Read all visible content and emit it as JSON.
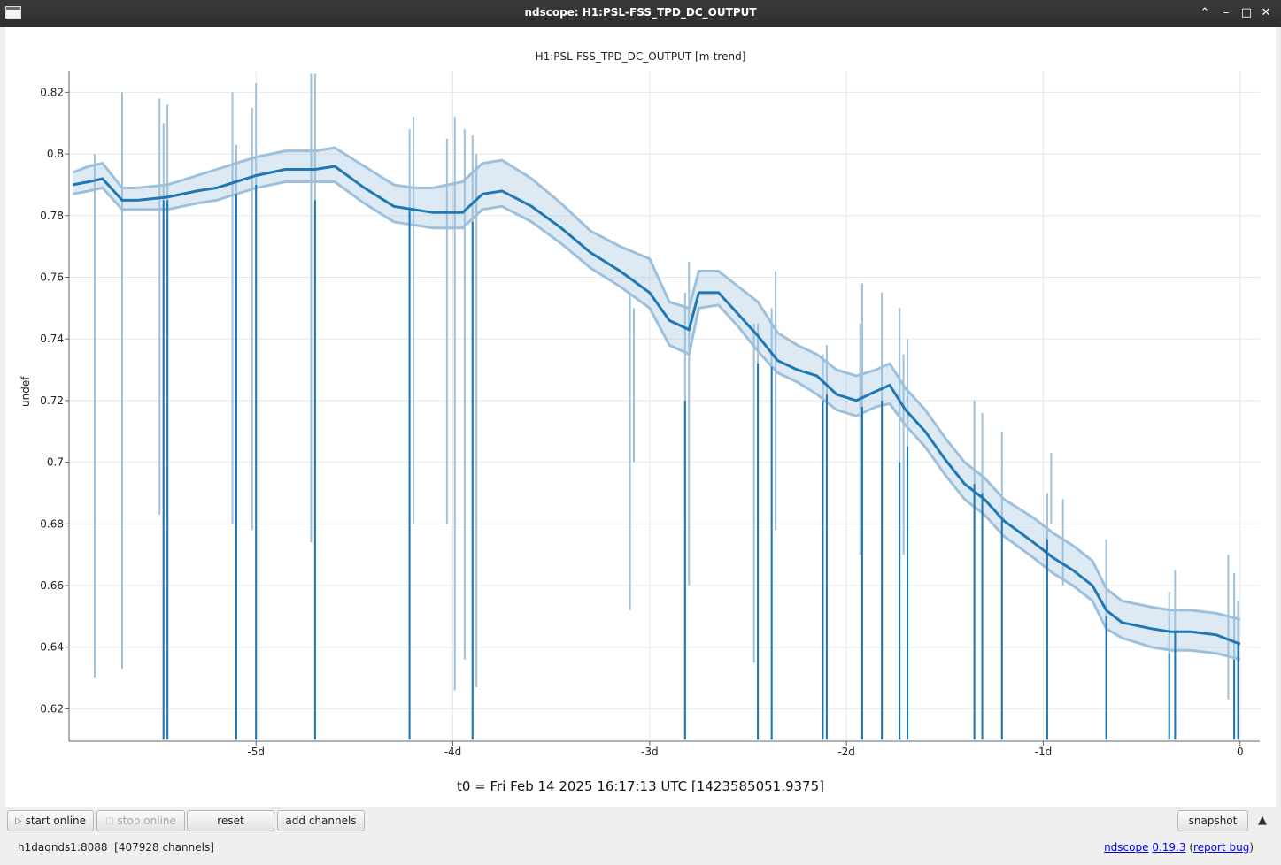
{
  "window": {
    "title": "ndscope: H1:PSL-FSS_TPD_DC_OUTPUT",
    "controls": {
      "minimize_up": "⌃",
      "minimize": "–",
      "maximize": "□",
      "close": "✕"
    }
  },
  "plot": {
    "title": "H1:PSL-FSS_TPD_DC_OUTPUT [m-trend]",
    "ylabel": "undef",
    "t0_text": "t0 = Fri Feb 14 2025 16:17:13 UTC [1423585051.9375]"
  },
  "chart_data": {
    "type": "line",
    "title": "H1:PSL-FSS_TPD_DC_OUTPUT [m-trend]",
    "xlabel": "",
    "ylabel": "undef",
    "xlim": [
      -5.95,
      0.1
    ],
    "ylim": [
      0.6095,
      0.827
    ],
    "grid": true,
    "x_tick_values": [
      -5,
      -4,
      -3,
      -2,
      -1,
      0
    ],
    "x_tick_labels": [
      "-5d",
      "-4d",
      "-3d",
      "-2d",
      "-1d",
      "0"
    ],
    "y_tick_values": [
      0.62,
      0.64,
      0.66,
      0.68,
      0.7,
      0.72,
      0.74,
      0.76,
      0.78,
      0.8,
      0.82
    ],
    "y_tick_labels": [
      "0.62",
      "0.64",
      "0.66",
      "0.68",
      "0.7",
      "0.72",
      "0.74",
      "0.76",
      "0.78",
      "0.8",
      "0.82"
    ],
    "colors": {
      "mean": "#1f77b4",
      "minmax": "#9dc0dc",
      "grid": "#e8e8e8"
    },
    "series": [
      {
        "role": "mean",
        "x": [
          -5.93,
          -5.85,
          -5.78,
          -5.68,
          -5.6,
          -5.45,
          -5.3,
          -5.2,
          -5.0,
          -4.85,
          -4.7,
          -4.6,
          -4.45,
          -4.3,
          -4.2,
          -4.1,
          -3.95,
          -3.85,
          -3.75,
          -3.6,
          -3.45,
          -3.3,
          -3.15,
          -3.0,
          -2.9,
          -2.8,
          -2.75,
          -2.65,
          -2.55,
          -2.45,
          -2.35,
          -2.25,
          -2.15,
          -2.05,
          -1.95,
          -1.85,
          -1.78,
          -1.7,
          -1.6,
          -1.5,
          -1.4,
          -1.3,
          -1.2,
          -1.05,
          -0.95,
          -0.85,
          -0.75,
          -0.68,
          -0.6,
          -0.45,
          -0.35,
          -0.25,
          -0.12,
          0.0
        ],
        "y": [
          0.79,
          0.791,
          0.792,
          0.785,
          0.785,
          0.786,
          0.788,
          0.789,
          0.793,
          0.795,
          0.795,
          0.796,
          0.789,
          0.783,
          0.782,
          0.781,
          0.781,
          0.787,
          0.788,
          0.783,
          0.776,
          0.768,
          0.762,
          0.755,
          0.746,
          0.743,
          0.755,
          0.755,
          0.748,
          0.741,
          0.733,
          0.73,
          0.728,
          0.722,
          0.72,
          0.723,
          0.725,
          0.717,
          0.71,
          0.701,
          0.693,
          0.688,
          0.681,
          0.674,
          0.669,
          0.665,
          0.66,
          0.652,
          0.648,
          0.646,
          0.645,
          0.645,
          0.644,
          0.641
        ]
      },
      {
        "role": "max",
        "x": [
          -5.93,
          -5.85,
          -5.78,
          -5.68,
          -5.6,
          -5.45,
          -5.3,
          -5.2,
          -5.0,
          -4.85,
          -4.7,
          -4.6,
          -4.45,
          -4.3,
          -4.2,
          -4.1,
          -3.95,
          -3.85,
          -3.75,
          -3.6,
          -3.45,
          -3.3,
          -3.15,
          -3.0,
          -2.9,
          -2.8,
          -2.75,
          -2.65,
          -2.55,
          -2.45,
          -2.35,
          -2.25,
          -2.15,
          -2.05,
          -1.95,
          -1.85,
          -1.78,
          -1.7,
          -1.6,
          -1.5,
          -1.4,
          -1.3,
          -1.2,
          -1.05,
          -0.95,
          -0.85,
          -0.75,
          -0.68,
          -0.6,
          -0.45,
          -0.35,
          -0.25,
          -0.12,
          0.0
        ],
        "y": [
          0.794,
          0.796,
          0.797,
          0.789,
          0.789,
          0.79,
          0.793,
          0.795,
          0.799,
          0.801,
          0.801,
          0.802,
          0.796,
          0.79,
          0.789,
          0.789,
          0.791,
          0.797,
          0.798,
          0.792,
          0.784,
          0.775,
          0.77,
          0.766,
          0.752,
          0.75,
          0.762,
          0.762,
          0.757,
          0.752,
          0.742,
          0.738,
          0.735,
          0.73,
          0.728,
          0.73,
          0.732,
          0.724,
          0.717,
          0.708,
          0.7,
          0.695,
          0.688,
          0.682,
          0.677,
          0.673,
          0.668,
          0.659,
          0.655,
          0.653,
          0.652,
          0.652,
          0.651,
          0.649
        ]
      },
      {
        "role": "min",
        "x": [
          -5.93,
          -5.85,
          -5.78,
          -5.68,
          -5.6,
          -5.45,
          -5.3,
          -5.2,
          -5.0,
          -4.85,
          -4.7,
          -4.6,
          -4.45,
          -4.3,
          -4.2,
          -4.1,
          -3.95,
          -3.85,
          -3.75,
          -3.6,
          -3.45,
          -3.3,
          -3.15,
          -3.0,
          -2.9,
          -2.8,
          -2.75,
          -2.65,
          -2.55,
          -2.45,
          -2.35,
          -2.25,
          -2.15,
          -2.05,
          -1.95,
          -1.85,
          -1.78,
          -1.7,
          -1.6,
          -1.5,
          -1.4,
          -1.3,
          -1.2,
          -1.05,
          -0.95,
          -0.85,
          -0.75,
          -0.68,
          -0.6,
          -0.45,
          -0.35,
          -0.25,
          -0.12,
          0.0
        ],
        "y": [
          0.787,
          0.788,
          0.789,
          0.782,
          0.782,
          0.782,
          0.784,
          0.785,
          0.789,
          0.791,
          0.791,
          0.791,
          0.784,
          0.778,
          0.777,
          0.776,
          0.776,
          0.782,
          0.783,
          0.778,
          0.771,
          0.763,
          0.757,
          0.75,
          0.738,
          0.735,
          0.75,
          0.751,
          0.744,
          0.736,
          0.729,
          0.726,
          0.722,
          0.717,
          0.715,
          0.718,
          0.719,
          0.712,
          0.705,
          0.696,
          0.688,
          0.683,
          0.676,
          0.669,
          0.664,
          0.66,
          0.655,
          0.646,
          0.643,
          0.64,
          0.639,
          0.639,
          0.638,
          0.636
        ]
      }
    ],
    "dropouts": [
      {
        "x": -5.82,
        "min": 0.63,
        "mean": 0.655,
        "max": 0.8
      },
      {
        "x": -5.68,
        "min": 0.633,
        "mean": 0.785,
        "max": 0.82
      },
      {
        "x": -5.49,
        "min": 0.683,
        "mean": 0.786,
        "max": 0.818
      },
      {
        "x": -5.47,
        "min": 0.61,
        "mean": 0.785,
        "max": 0.81
      },
      {
        "x": -5.45,
        "min": 0.61,
        "mean": 0.785,
        "max": 0.816
      },
      {
        "x": -5.12,
        "min": 0.68,
        "mean": 0.788,
        "max": 0.82
      },
      {
        "x": -5.1,
        "min": 0.61,
        "mean": 0.787,
        "max": 0.803
      },
      {
        "x": -5.02,
        "min": 0.678,
        "mean": 0.789,
        "max": 0.815
      },
      {
        "x": -5.0,
        "min": 0.61,
        "mean": 0.79,
        "max": 0.823
      },
      {
        "x": -4.72,
        "min": 0.674,
        "mean": 0.79,
        "max": 0.826
      },
      {
        "x": -4.7,
        "min": 0.61,
        "mean": 0.785,
        "max": 0.826
      },
      {
        "x": -4.22,
        "min": 0.61,
        "mean": 0.782,
        "max": 0.808
      },
      {
        "x": -4.2,
        "min": 0.68,
        "mean": 0.781,
        "max": 0.812
      },
      {
        "x": -4.03,
        "min": 0.68,
        "mean": 0.781,
        "max": 0.805
      },
      {
        "x": -3.99,
        "min": 0.626,
        "mean": 0.78,
        "max": 0.812
      },
      {
        "x": -3.94,
        "min": 0.636,
        "mean": 0.779,
        "max": 0.808
      },
      {
        "x": -3.9,
        "min": 0.61,
        "mean": 0.778,
        "max": 0.806
      },
      {
        "x": -3.88,
        "min": 0.627,
        "mean": 0.779,
        "max": 0.8
      },
      {
        "x": -3.1,
        "min": 0.652,
        "mean": 0.747,
        "max": 0.755
      },
      {
        "x": -3.08,
        "min": 0.7,
        "mean": 0.745,
        "max": 0.75
      },
      {
        "x": -2.82,
        "min": 0.61,
        "mean": 0.72,
        "max": 0.755
      },
      {
        "x": -2.8,
        "min": 0.66,
        "mean": 0.72,
        "max": 0.765
      },
      {
        "x": -2.47,
        "min": 0.635,
        "mean": 0.733,
        "max": 0.745
      },
      {
        "x": -2.45,
        "min": 0.61,
        "mean": 0.732,
        "max": 0.745
      },
      {
        "x": -2.38,
        "min": 0.61,
        "mean": 0.731,
        "max": 0.75
      },
      {
        "x": -2.36,
        "min": 0.678,
        "mean": 0.73,
        "max": 0.762
      },
      {
        "x": -2.12,
        "min": 0.61,
        "mean": 0.72,
        "max": 0.735
      },
      {
        "x": -2.1,
        "min": 0.61,
        "mean": 0.722,
        "max": 0.738
      },
      {
        "x": -1.93,
        "min": 0.67,
        "mean": 0.72,
        "max": 0.745
      },
      {
        "x": -1.92,
        "min": 0.61,
        "mean": 0.718,
        "max": 0.758
      },
      {
        "x": -1.82,
        "min": 0.61,
        "mean": 0.72,
        "max": 0.755
      },
      {
        "x": -1.73,
        "min": 0.61,
        "mean": 0.7,
        "max": 0.75
      },
      {
        "x": -1.71,
        "min": 0.67,
        "mean": 0.695,
        "max": 0.735
      },
      {
        "x": -1.69,
        "min": 0.61,
        "mean": 0.705,
        "max": 0.74
      },
      {
        "x": -1.35,
        "min": 0.61,
        "mean": 0.693,
        "max": 0.72
      },
      {
        "x": -1.31,
        "min": 0.61,
        "mean": 0.69,
        "max": 0.716
      },
      {
        "x": -1.21,
        "min": 0.61,
        "mean": 0.682,
        "max": 0.71
      },
      {
        "x": -0.98,
        "min": 0.61,
        "mean": 0.675,
        "max": 0.69
      },
      {
        "x": -0.96,
        "min": 0.68,
        "mean": 0.676,
        "max": 0.703
      },
      {
        "x": -0.9,
        "min": 0.66,
        "mean": 0.672,
        "max": 0.688
      },
      {
        "x": -0.68,
        "min": 0.61,
        "mean": 0.65,
        "max": 0.675
      },
      {
        "x": -0.36,
        "min": 0.61,
        "mean": 0.638,
        "max": 0.658
      },
      {
        "x": -0.33,
        "min": 0.61,
        "mean": 0.645,
        "max": 0.665
      },
      {
        "x": -0.06,
        "min": 0.623,
        "mean": 0.64,
        "max": 0.67
      },
      {
        "x": -0.03,
        "min": 0.61,
        "mean": 0.636,
        "max": 0.664
      },
      {
        "x": -0.01,
        "min": 0.61,
        "mean": 0.641,
        "max": 0.655
      }
    ]
  },
  "toolbar": {
    "start_online": "start online",
    "stop_online": "stop online",
    "reset": "reset",
    "add_channels": "add channels",
    "snapshot": "snapshot",
    "collapse": "▲",
    "play_icon": "▷",
    "stop_icon": "□"
  },
  "status": {
    "server": "h1daqnds1:8088  [407928 channels]",
    "app_link": "ndscope",
    "version_link": "0.19.3",
    "bug_link": "report bug"
  }
}
